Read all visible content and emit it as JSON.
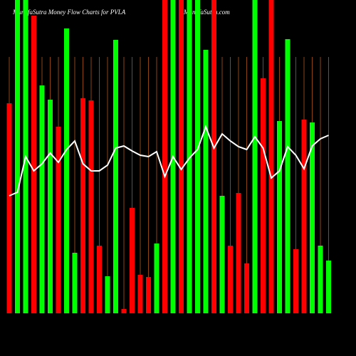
{
  "chart_data": {
    "type": "bar",
    "title": "MunafaSutra  Money Flow  Charts for PVLA",
    "watermark": "MunafaSutra.com",
    "values": [
      295,
      440,
      440,
      418,
      320,
      300,
      262,
      400,
      85,
      302,
      299,
      95,
      52,
      384,
      6,
      148,
      54,
      51,
      98,
      440,
      440,
      440,
      440,
      440,
      370,
      440,
      165,
      95,
      169,
      70,
      440,
      330,
      440,
      270,
      385,
      90,
      272,
      268,
      95,
      74
    ],
    "colors": [
      "#ff0000",
      "#00ff00",
      "#00ff00",
      "#ff0000",
      "#00ff00",
      "#00ff00",
      "#ff0000",
      "#00ff00",
      "#00ff00",
      "#ff0000",
      "#ff0000",
      "#ff0000",
      "#00ff00",
      "#00ff00",
      "#ff0000",
      "#ff0000",
      "#ff0000",
      "#ff0000",
      "#00ff00",
      "#ff0000",
      "#00ff00",
      "#ff0000",
      "#00ff00",
      "#00ff00",
      "#00ff00",
      "#ff0000",
      "#00ff00",
      "#ff0000",
      "#ff0000",
      "#ff0000",
      "#00ff00",
      "#ff0000",
      "#ff0000",
      "#00ff00",
      "#00ff00",
      "#ff0000",
      "#ff0000",
      "#00ff00",
      "#00ff00",
      "#00ff00"
    ],
    "line": {
      "color": "#ffffff",
      "values": [
        165,
        170,
        220,
        200,
        210,
        225,
        212,
        230,
        242,
        210,
        200,
        200,
        208,
        232,
        235,
        228,
        222,
        220,
        227,
        192,
        220,
        202,
        218,
        230,
        262,
        232,
        252,
        242,
        234,
        230,
        248,
        232,
        190,
        200,
        234,
        222,
        203,
        235,
        245,
        250
      ]
    },
    "grid": true,
    "grid_color": "#8b4513"
  }
}
